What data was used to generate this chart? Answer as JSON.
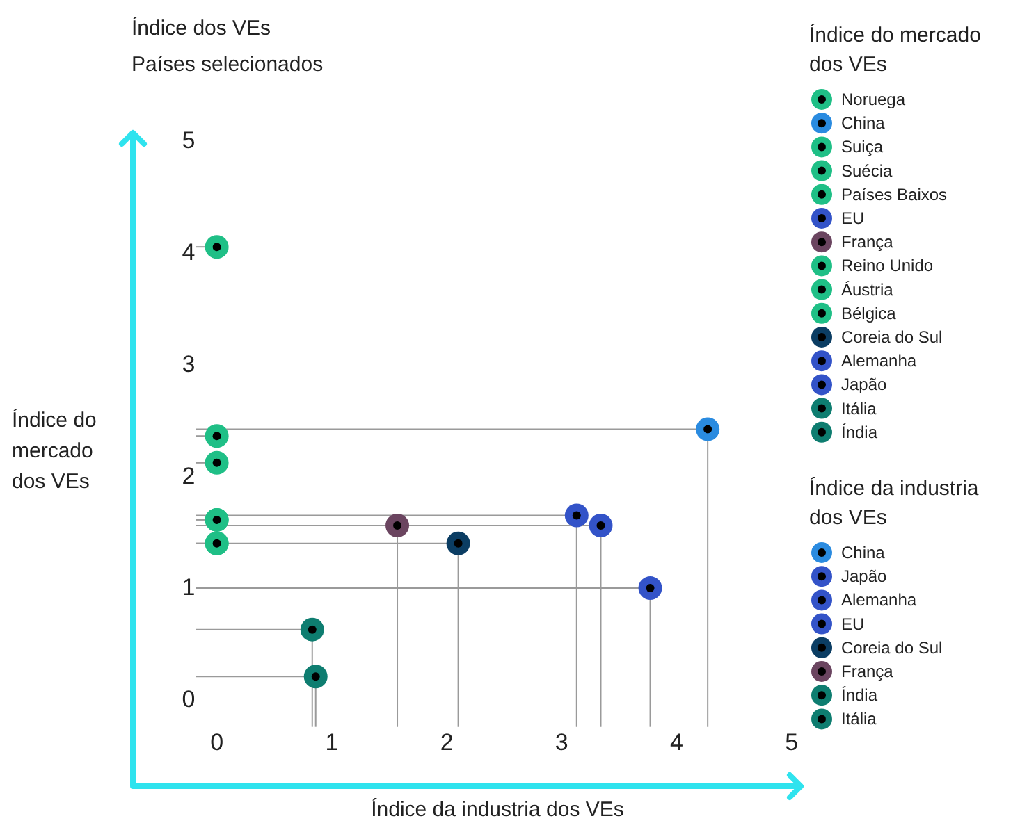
{
  "chart_data": {
    "type": "scatter",
    "title": "Índice dos VEs",
    "subtitle": "Países selecionados",
    "xlabel": "Índice da industria dos VEs",
    "ylabel": "Índice do mercado dos VEs",
    "legend_title": "Índice do mercado dos VEs",
    "annotations": [
      "Índice da industria dos VEs"
    ],
    "legend": "right",
    "marker": "circle",
    "xlim": [
      -0.73,
      5.08
    ],
    "ylim": [
      -0.78,
      5.06
    ],
    "xticks": [
      0,
      1,
      2,
      3,
      4,
      5
    ],
    "yticks": [
      0,
      1,
      2,
      3,
      4,
      5
    ],
    "series": [
      {
        "name": "Noruega",
        "color": "#1fbf86",
        "x": [
          0
        ],
        "values": [
          4.04
        ],
        "xerrors": [
          [
            -0.18,
            0
          ]
        ],
        "errors": [
          null
        ]
      },
      {
        "name": "China",
        "color": "#2a8be0",
        "x": [
          4.27
        ],
        "values": [
          2.41
        ],
        "xerrors": [
          [
            -0.18,
            4.27
          ]
        ],
        "errors": [
          [
            -0.25,
            2.41
          ]
        ]
      },
      {
        "name": "Suiça",
        "color": "#1fbf86",
        "x": [
          0
        ],
        "values": [
          2.35
        ],
        "xerrors": [
          [
            -0.18,
            0
          ]
        ],
        "errors": [
          null
        ]
      },
      {
        "name": "Suécia",
        "color": "#1fbf86",
        "x": [
          0
        ],
        "values": [
          2.11
        ],
        "xerrors": [
          [
            -0.18,
            0
          ]
        ],
        "errors": [
          null
        ]
      },
      {
        "name": "Países Baixos",
        "color": "#1fbf86",
        "x": [
          0
        ],
        "values": [
          1.6
        ],
        "xerrors": [
          [
            -0.18,
            0
          ]
        ],
        "errors": [
          null
        ]
      },
      {
        "name": "EU",
        "color": "#3353c8",
        "x": [
          3.13
        ],
        "values": [
          1.64
        ],
        "xerrors": [
          [
            -0.18,
            3.13
          ]
        ],
        "errors": [
          [
            -0.25,
            1.64
          ]
        ]
      },
      {
        "name": "França",
        "color": "#6b4560",
        "x": [
          1.57
        ],
        "values": [
          1.55
        ],
        "xerrors": [
          [
            -0.18,
            1.57
          ]
        ],
        "errors": [
          [
            -0.25,
            1.55
          ]
        ]
      },
      {
        "name": "Reino Unido",
        "color": "#1fbf86",
        "x": [
          0
        ],
        "values": [
          1.6
        ],
        "xerrors": [
          [
            -0.18,
            0
          ]
        ],
        "errors": [
          null
        ]
      },
      {
        "name": "Áustria",
        "color": "#1fbf86",
        "x": [
          0
        ],
        "values": [
          1.39
        ],
        "xerrors": [
          [
            -0.18,
            0
          ]
        ],
        "errors": [
          null
        ]
      },
      {
        "name": "Bélgica",
        "color": "#1fbf86",
        "x": [
          0
        ],
        "values": [
          1.39
        ],
        "xerrors": [
          [
            -0.18,
            0
          ]
        ],
        "errors": [
          null
        ]
      },
      {
        "name": "Coreia do Sul",
        "color": "#0b3d63",
        "x": [
          2.1
        ],
        "values": [
          1.39
        ],
        "xerrors": [
          [
            -0.18,
            2.1
          ]
        ],
        "errors": [
          [
            -0.25,
            1.39
          ]
        ]
      },
      {
        "name": "Alemanha",
        "color": "#3353c8",
        "x": [
          3.34
        ],
        "values": [
          1.55
        ],
        "xerrors": [
          [
            -0.18,
            3.34
          ]
        ],
        "errors": [
          [
            -0.25,
            1.55
          ]
        ]
      },
      {
        "name": "Japão",
        "color": "#3353c8",
        "x": [
          3.77
        ],
        "values": [
          0.99
        ],
        "xerrors": [
          [
            -0.18,
            3.77
          ]
        ],
        "errors": [
          [
            -0.25,
            0.99
          ]
        ]
      },
      {
        "name": "Itália",
        "color": "#0e7d70",
        "x": [
          0.83
        ],
        "values": [
          0.62
        ],
        "xerrors": [
          [
            -0.18,
            0.83
          ]
        ],
        "errors": [
          [
            -0.25,
            0.62
          ]
        ]
      },
      {
        "name": "Índia",
        "color": "#0e7d70",
        "x": [
          0.86
        ],
        "values": [
          0.2
        ],
        "xerrors": [
          [
            -0.18,
            0.86
          ]
        ],
        "errors": [
          [
            -0.25,
            0.2
          ]
        ]
      }
    ]
  }
}
